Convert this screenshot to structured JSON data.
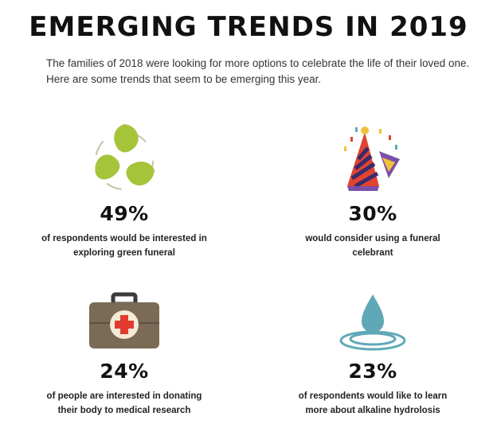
{
  "header": {
    "title": "EMERGING TRENDS IN 2019",
    "intro": "The families of 2018 were looking for more options to celebrate the life of their loved one. Here are some trends that seem to be emerging this year."
  },
  "stats": [
    {
      "icon": "recycle-leaves-icon",
      "percent": "49%",
      "percent_value": 49,
      "line1": "of respondents would be interested in",
      "line2": "exploring green funeral"
    },
    {
      "icon": "party-hat-icon",
      "percent": "30%",
      "percent_value": 30,
      "line1": "would consider using a funeral",
      "line2": "celebrant"
    },
    {
      "icon": "medical-kit-icon",
      "percent": "24%",
      "percent_value": 24,
      "line1": "of people are interested in donating",
      "line2": "their body to medical research"
    },
    {
      "icon": "water-drop-icon",
      "percent": "23%",
      "percent_value": 23,
      "line1": "of respondents would like to learn",
      "line2": "more about alkaline hydrolosis"
    }
  ],
  "colors": {
    "leaf_green": "#a5c43a",
    "party_red": "#e0442e",
    "party_purple": "#7b4fa8",
    "kit_brown": "#7b6a55",
    "kit_cream": "#f3ead7",
    "cross_red": "#e23b2e",
    "water_blue": "#5fa8b8"
  }
}
